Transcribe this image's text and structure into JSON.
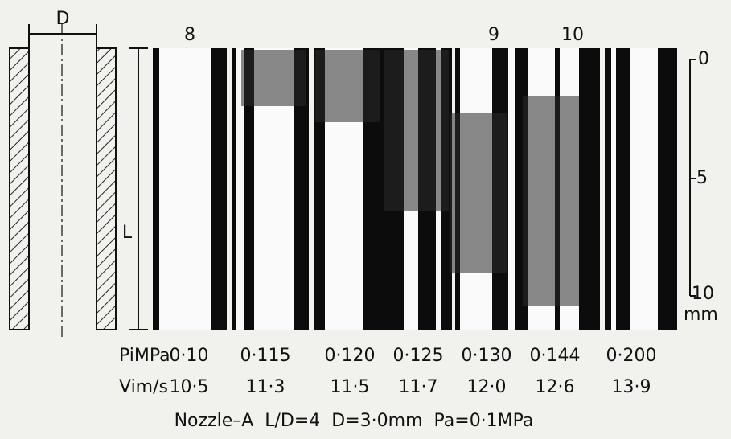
{
  "diagram": {
    "diameter_label": "D",
    "length_label": "L"
  },
  "photo_labels": [
    "8",
    "9",
    "10"
  ],
  "scale": {
    "ticks": [
      "0",
      "5",
      "10"
    ],
    "unit": "mm"
  },
  "table": {
    "row_headers": [
      "PiMPa",
      "Vim/s"
    ],
    "rows": [
      [
        "0·10",
        "0·115",
        "0·120",
        "0·125",
        "0·130",
        "0·144",
        "0·200"
      ],
      [
        "10·5",
        "11·3",
        "11·5",
        "11·7",
        "12·0",
        "12·6",
        "13·9"
      ]
    ]
  },
  "caption": "Nozzle–A  L/D=4  D=3·0mm  Pa=0·1MPa"
}
